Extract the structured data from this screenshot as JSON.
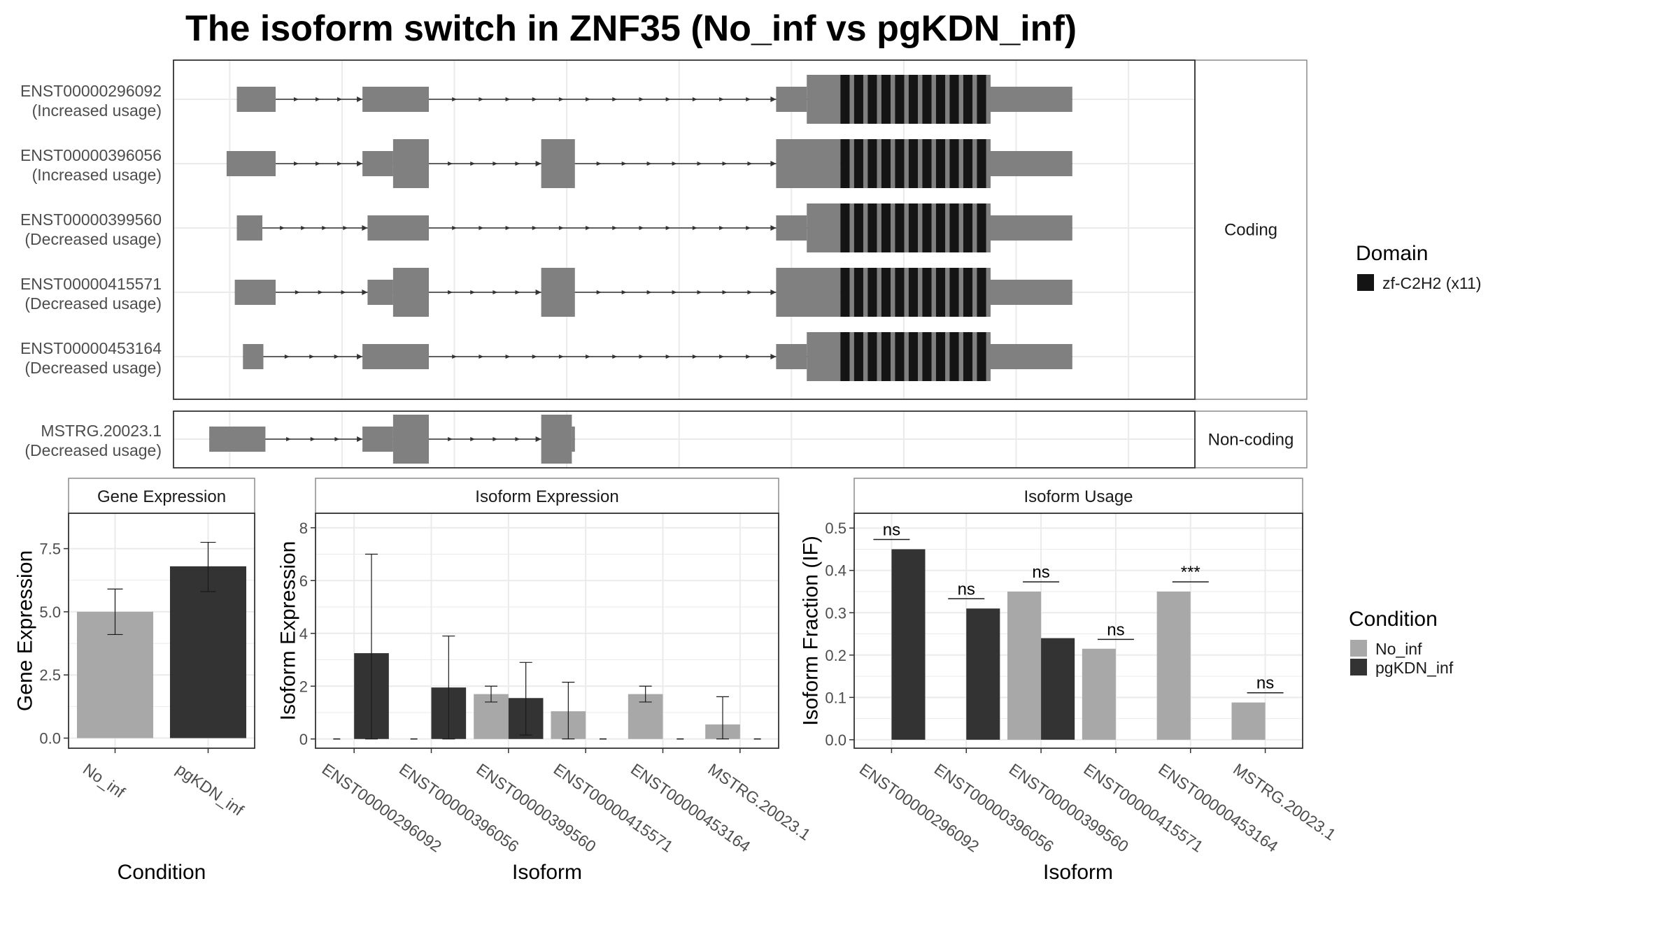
{
  "title": "The isoform switch in ZNF35 (No_inf vs pgKDN_inf)",
  "colors": {
    "exon": "#808080",
    "domain": "#141414",
    "no_inf": "#a8a8a8",
    "pgkdn_inf": "#333333",
    "grid": "#ebebeb",
    "panel_border": "#333333",
    "strip_border": "#8c8c8c"
  },
  "facets": {
    "coding": "Coding",
    "noncoding": "Non-coding"
  },
  "transcripts": [
    {
      "id": "ENST00000296092",
      "note": "(Increased usage)",
      "group": "coding",
      "exons": [
        [
          0.062,
          0.1
        ],
        [
          0.185,
          0.25
        ],
        [
          0.59,
          0.62
        ],
        [
          0.62,
          0.8
        ],
        [
          0.8,
          0.88
        ]
      ],
      "domain": [
        0.653,
        0.8
      ]
    },
    {
      "id": "ENST00000396056",
      "note": "(Increased usage)",
      "group": "coding",
      "exons": [
        [
          0.052,
          0.1
        ],
        [
          0.185,
          0.215
        ],
        [
          0.215,
          0.25
        ],
        [
          0.36,
          0.393
        ],
        [
          0.59,
          0.653
        ],
        [
          0.653,
          0.8
        ],
        [
          0.8,
          0.88
        ]
      ],
      "domain": [
        0.653,
        0.8
      ]
    },
    {
      "id": "ENST00000399560",
      "note": "(Decreased usage)",
      "group": "coding",
      "exons": [
        [
          0.062,
          0.087
        ],
        [
          0.19,
          0.25
        ],
        [
          0.59,
          0.62
        ],
        [
          0.62,
          0.8
        ],
        [
          0.8,
          0.88
        ]
      ],
      "domain": [
        0.653,
        0.8
      ]
    },
    {
      "id": "ENST00000415571",
      "note": "(Decreased usage)",
      "group": "coding",
      "exons": [
        [
          0.06,
          0.1
        ],
        [
          0.19,
          0.215
        ],
        [
          0.215,
          0.25
        ],
        [
          0.36,
          0.393
        ],
        [
          0.59,
          0.653
        ],
        [
          0.653,
          0.8
        ],
        [
          0.8,
          0.88
        ]
      ],
      "domain": [
        0.653,
        0.8
      ]
    },
    {
      "id": "ENST00000453164",
      "note": "(Decreased usage)",
      "group": "coding",
      "exons": [
        [
          0.068,
          0.088
        ],
        [
          0.185,
          0.25
        ],
        [
          0.59,
          0.62
        ],
        [
          0.62,
          0.8
        ],
        [
          0.8,
          0.88
        ]
      ],
      "domain": [
        0.653,
        0.8
      ]
    },
    {
      "id": "MSTRG.20023.1",
      "note": "(Decreased usage)",
      "group": "noncoding",
      "exons": [
        [
          0.035,
          0.09
        ],
        [
          0.185,
          0.215
        ],
        [
          0.215,
          0.25
        ],
        [
          0.36,
          0.39
        ],
        [
          0.39,
          0.393
        ]
      ],
      "domain": null
    }
  ],
  "domain_legend": {
    "title": "Domain",
    "label": "zf-C2H2 (x11)"
  },
  "condition_legend": {
    "title": "Condition",
    "items": [
      "No_inf",
      "pgKDN_inf"
    ]
  },
  "chart_data": [
    {
      "type": "bar",
      "title": "Gene Expression",
      "xlabel": "Condition",
      "ylabel": "Gene Expression",
      "categories": [
        "No_inf",
        "pgKDN_inf"
      ],
      "values": [
        5.0,
        6.8
      ],
      "err_low": [
        4.1,
        5.8
      ],
      "err_high": [
        5.9,
        7.75
      ],
      "ylim": [
        -0.4,
        8.9
      ],
      "yticks": [
        0.0,
        2.5,
        5.0,
        7.5
      ],
      "ytick_labels": [
        "0.0",
        "2.5",
        "5.0",
        "7.5"
      ]
    },
    {
      "type": "bar",
      "title": "Isoform Expression",
      "xlabel": "Isoform",
      "ylabel": "Isoform Expression",
      "categories": [
        "ENST00000296092",
        "ENST00000396056",
        "ENST00000399560",
        "ENST00000415571",
        "ENST00000453164",
        "MSTRG.20023.1"
      ],
      "series": [
        {
          "name": "No_inf",
          "values": [
            0,
            0,
            1.7,
            1.05,
            1.7,
            0.55
          ],
          "err_low": [
            null,
            null,
            1.4,
            0.0,
            1.4,
            0.0
          ],
          "err_high": [
            null,
            null,
            2.0,
            2.15,
            2.0,
            1.6
          ]
        },
        {
          "name": "pgKDN_inf",
          "values": [
            3.25,
            1.95,
            1.55,
            0,
            0,
            0
          ],
          "err_low": [
            0.0,
            0.0,
            0.15,
            null,
            null,
            null
          ],
          "err_high": [
            7.0,
            3.9,
            2.9,
            null,
            null,
            null
          ]
        }
      ],
      "ylim": [
        -0.35,
        8.55
      ],
      "yticks": [
        0,
        2,
        4,
        6,
        8
      ],
      "ytick_labels": [
        "0",
        "2",
        "4",
        "6",
        "8"
      ]
    },
    {
      "type": "bar",
      "title": "Isoform Usage",
      "xlabel": "Isoform",
      "ylabel": "Isoform Fraction (IF)",
      "categories": [
        "ENST00000296092",
        "ENST00000396056",
        "ENST00000399560",
        "ENST00000415571",
        "ENST00000453164",
        "MSTRG.20023.1"
      ],
      "series": [
        {
          "name": "No_inf",
          "values": [
            0,
            0,
            0.35,
            0.215,
            0.35,
            0.088
          ]
        },
        {
          "name": "pgKDN_inf",
          "values": [
            0.45,
            0.31,
            0.24,
            0,
            0,
            0
          ]
        }
      ],
      "significance": [
        "ns",
        "ns",
        "ns",
        "ns",
        "***",
        "ns"
      ],
      "sig_y": [
        0.473,
        0.333,
        0.373,
        0.237,
        0.373,
        0.111
      ],
      "ylim": [
        -0.02,
        0.535
      ],
      "yticks": [
        0.0,
        0.1,
        0.2,
        0.3,
        0.4,
        0.5
      ],
      "ytick_labels": [
        "0.0",
        "0.1",
        "0.2",
        "0.3",
        "0.4",
        "0.5"
      ]
    }
  ]
}
